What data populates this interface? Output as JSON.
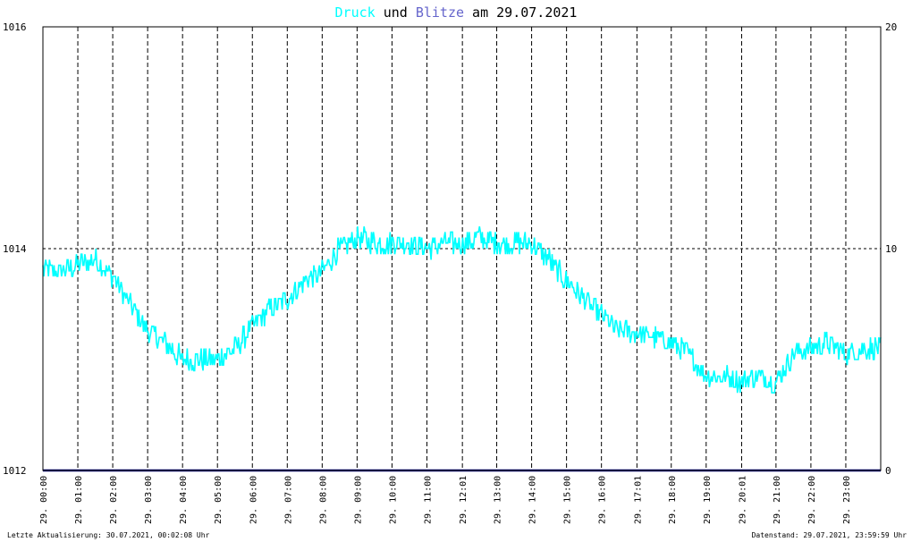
{
  "colors": {
    "druck": "#00ffff",
    "blitze": "#6666cc",
    "baseline": "#000080",
    "text": "#000000",
    "grid": "#000000"
  },
  "title": {
    "part1": "Druck",
    "part2": " und ",
    "part3": "Blitze",
    "part4": " am 29.07.2021"
  },
  "footer": {
    "left": "Letzte Aktualisierung: 30.07.2021, 00:02:08 Uhr",
    "right": "Datenstand: 29.07.2021, 23:59:59 Uhr"
  },
  "chart_data": {
    "type": "line",
    "title": "Druck und Blitze am 29.07.2021",
    "left_axis": {
      "ticks": [
        "1012",
        "1014",
        "1016"
      ],
      "ylim": [
        1012,
        1016
      ]
    },
    "right_axis": {
      "ticks": [
        "0",
        "10",
        "20"
      ],
      "ylim": [
        0,
        20
      ]
    },
    "x_ticks": [
      "29. 00:00",
      "29. 01:00",
      "29. 02:00",
      "29. 03:00",
      "29. 04:00",
      "29. 05:00",
      "29. 06:00",
      "29. 07:00",
      "29. 08:00",
      "29. 09:00",
      "29. 10:00",
      "29. 11:00",
      "29. 12:01",
      "29. 13:00",
      "29. 14:00",
      "29. 15:00",
      "29. 16:00",
      "29. 17:01",
      "29. 18:00",
      "29. 19:00",
      "29. 20:01",
      "29. 21:00",
      "29. 22:00",
      "29. 23:00"
    ],
    "grid": true,
    "series": [
      {
        "name": "Druck",
        "axis": "left",
        "x_hours": [
          0,
          0.5,
          1,
          1.5,
          2,
          2.5,
          3,
          3.5,
          4,
          4.5,
          5,
          5.5,
          6,
          6.5,
          7,
          7.5,
          8,
          8.5,
          9,
          9.5,
          10,
          10.5,
          11,
          11.5,
          12,
          12.5,
          13,
          13.5,
          14,
          14.5,
          15,
          15.5,
          16,
          16.5,
          17,
          17.5,
          18,
          18.5,
          19,
          19.5,
          20,
          20.5,
          21,
          21.5,
          22,
          22.5,
          23,
          23.5,
          24
        ],
        "values": [
          1013.8,
          1013.8,
          1013.85,
          1013.9,
          1013.75,
          1013.5,
          1013.25,
          1013.15,
          1013.0,
          1013.0,
          1013.0,
          1013.1,
          1013.3,
          1013.45,
          1013.55,
          1013.7,
          1013.8,
          1014.0,
          1014.1,
          1014.05,
          1014.05,
          1014.05,
          1014.0,
          1014.05,
          1014.05,
          1014.1,
          1014.05,
          1014.05,
          1014.05,
          1013.9,
          1013.7,
          1013.55,
          1013.4,
          1013.25,
          1013.25,
          1013.2,
          1013.15,
          1013.05,
          1012.85,
          1012.85,
          1012.8,
          1012.85,
          1012.8,
          1013.05,
          1013.1,
          1013.15,
          1013.05,
          1013.1,
          1013.1
        ]
      },
      {
        "name": "Blitze",
        "axis": "right",
        "x_hours": [
          0,
          24
        ],
        "values": [
          0,
          0
        ]
      }
    ]
  }
}
